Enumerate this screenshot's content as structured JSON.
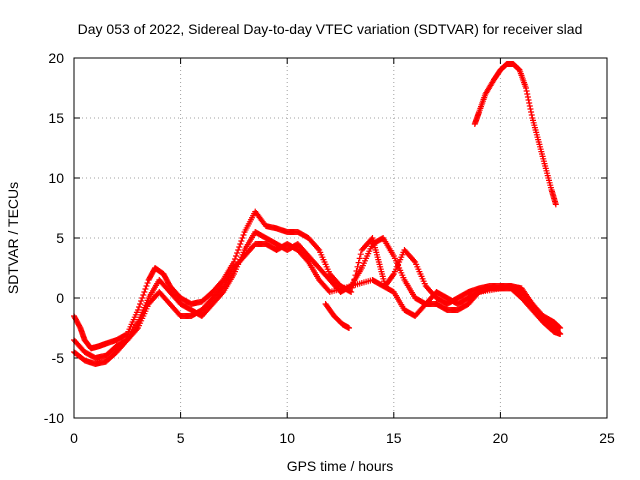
{
  "chart_data": {
    "type": "scatter",
    "title": "Day 053 of 2022, Sidereal Day-to-day VTEC variation (SDTVAR) for receiver slad",
    "xlabel": "GPS time / hours",
    "ylabel": "SDTVAR / TECUs",
    "xlim": [
      0,
      25
    ],
    "ylim": [
      -10,
      20
    ],
    "x_ticks": [
      0,
      5,
      10,
      15,
      20,
      25
    ],
    "y_ticks": [
      -10,
      -5,
      0,
      5,
      10,
      15,
      20
    ],
    "x_tick_labels": [
      "0",
      "5",
      "10",
      "15",
      "20",
      "25"
    ],
    "y_tick_labels": [
      "-10",
      "-5",
      "0",
      "5",
      "10",
      "15",
      "20"
    ],
    "grid": true,
    "marker": "+",
    "color": "#ff0000",
    "series": [
      {
        "name": "track-1",
        "points": [
          [
            0.0,
            -1.5
          ],
          [
            0.3,
            -2.5
          ],
          [
            0.5,
            -3.5
          ],
          [
            0.8,
            -4.2
          ],
          [
            1.2,
            -4.0
          ],
          [
            1.5,
            -3.8
          ],
          [
            2.0,
            -3.5
          ],
          [
            2.5,
            -3.0
          ],
          [
            3.0,
            -1.0
          ],
          [
            3.5,
            1.5
          ],
          [
            3.8,
            2.5
          ],
          [
            4.2,
            2.0
          ],
          [
            4.5,
            1.0
          ],
          [
            5.0,
            0.0
          ],
          [
            5.5,
            -0.5
          ],
          [
            6.0,
            -0.3
          ],
          [
            6.5,
            0.5
          ],
          [
            7.0,
            1.5
          ],
          [
            7.5,
            3.0
          ],
          [
            8.0,
            5.5
          ],
          [
            8.5,
            7.2
          ],
          [
            9.0,
            6.0
          ],
          [
            9.5,
            5.8
          ],
          [
            10.0,
            5.5
          ],
          [
            10.5,
            5.5
          ],
          [
            11.0,
            5.0
          ],
          [
            11.5,
            4.0
          ],
          [
            12.0,
            2.0
          ],
          [
            12.5,
            1.0
          ],
          [
            13.0,
            0.5
          ],
          [
            13.5,
            4.0
          ],
          [
            14.0,
            5.0
          ],
          [
            14.3,
            3.0
          ],
          [
            14.6,
            1.0
          ],
          [
            15.0,
            2.0
          ],
          [
            15.5,
            4.0
          ],
          [
            16.0,
            3.0
          ],
          [
            16.5,
            1.0
          ],
          [
            17.0,
            0.0
          ],
          [
            17.5,
            -0.5
          ],
          [
            18.0,
            0.0
          ],
          [
            18.5,
            0.5
          ],
          [
            19.0,
            0.8
          ],
          [
            19.5,
            1.0
          ],
          [
            20.0,
            1.0
          ],
          [
            20.5,
            1.0
          ],
          [
            21.0,
            0.8
          ],
          [
            21.5,
            -0.5
          ],
          [
            22.0,
            -1.5
          ],
          [
            22.5,
            -2.0
          ],
          [
            22.8,
            -2.5
          ]
        ]
      },
      {
        "name": "track-2",
        "points": [
          [
            0.0,
            -4.5
          ],
          [
            0.5,
            -5.2
          ],
          [
            1.0,
            -5.5
          ],
          [
            1.5,
            -5.3
          ],
          [
            2.0,
            -4.5
          ],
          [
            2.5,
            -3.5
          ],
          [
            3.0,
            -2.0
          ],
          [
            3.5,
            0.0
          ],
          [
            4.0,
            1.5
          ],
          [
            4.5,
            0.5
          ],
          [
            5.0,
            -0.5
          ],
          [
            5.5,
            -1.0
          ],
          [
            6.0,
            -1.5
          ],
          [
            6.5,
            -0.5
          ],
          [
            7.0,
            0.5
          ],
          [
            7.5,
            2.0
          ],
          [
            8.0,
            4.0
          ],
          [
            8.5,
            5.5
          ],
          [
            9.0,
            5.0
          ],
          [
            9.5,
            4.5
          ],
          [
            10.0,
            4.0
          ],
          [
            10.5,
            4.5
          ],
          [
            11.0,
            3.5
          ],
          [
            11.5,
            2.5
          ],
          [
            12.0,
            1.5
          ],
          [
            12.5,
            0.5
          ],
          [
            13.0,
            1.0
          ],
          [
            13.5,
            2.5
          ],
          [
            14.0,
            4.5
          ],
          [
            14.5,
            5.0
          ],
          [
            15.0,
            3.5
          ],
          [
            15.5,
            1.5
          ],
          [
            16.0,
            0.0
          ],
          [
            16.5,
            -0.5
          ],
          [
            17.0,
            0.5
          ],
          [
            17.5,
            0.0
          ],
          [
            18.0,
            -0.5
          ],
          [
            18.5,
            0.0
          ],
          [
            19.0,
            0.5
          ],
          [
            19.5,
            0.8
          ],
          [
            20.0,
            0.8
          ],
          [
            20.5,
            1.0
          ],
          [
            21.0,
            0.5
          ],
          [
            21.5,
            -0.5
          ],
          [
            22.0,
            -1.8
          ],
          [
            22.5,
            -2.5
          ],
          [
            22.8,
            -3.0
          ]
        ]
      },
      {
        "name": "track-3",
        "points": [
          [
            0.0,
            -3.5
          ],
          [
            0.5,
            -4.5
          ],
          [
            1.0,
            -5.0
          ],
          [
            1.5,
            -4.8
          ],
          [
            2.0,
            -4.0
          ],
          [
            2.5,
            -3.5
          ],
          [
            3.0,
            -2.5
          ],
          [
            3.5,
            -0.5
          ],
          [
            4.0,
            0.5
          ],
          [
            4.5,
            -0.5
          ],
          [
            5.0,
            -1.5
          ],
          [
            5.5,
            -1.5
          ],
          [
            6.0,
            -1.0
          ],
          [
            6.5,
            0.0
          ],
          [
            7.0,
            1.0
          ],
          [
            7.5,
            2.5
          ],
          [
            8.0,
            3.5
          ],
          [
            8.5,
            4.5
          ],
          [
            9.0,
            4.5
          ],
          [
            9.5,
            4.0
          ],
          [
            10.0,
            4.5
          ],
          [
            10.5,
            4.0
          ],
          [
            11.0,
            3.0
          ],
          [
            11.5,
            1.5
          ],
          [
            12.0,
            0.5
          ],
          [
            13.0,
            1.0
          ],
          [
            14.0,
            1.5
          ],
          [
            14.5,
            1.0
          ],
          [
            15.0,
            0.5
          ],
          [
            15.5,
            -1.0
          ],
          [
            16.0,
            -1.5
          ],
          [
            16.5,
            -0.5
          ],
          [
            17.0,
            -0.5
          ],
          [
            17.5,
            -1.0
          ],
          [
            18.0,
            -1.0
          ],
          [
            18.5,
            -0.5
          ],
          [
            19.0,
            0.5
          ],
          [
            20.0,
            0.8
          ],
          [
            20.5,
            0.8
          ],
          [
            21.0,
            0.0
          ],
          [
            21.5,
            -1.0
          ],
          [
            22.0,
            -2.0
          ],
          [
            22.5,
            -2.8
          ],
          [
            22.8,
            -3.0
          ]
        ]
      },
      {
        "name": "short-segment",
        "points": [
          [
            11.8,
            -0.5
          ],
          [
            12.2,
            -1.5
          ],
          [
            12.6,
            -2.2
          ],
          [
            12.9,
            -2.5
          ]
        ]
      },
      {
        "name": "late-arc",
        "points": [
          [
            18.8,
            14.5
          ],
          [
            19.0,
            15.5
          ],
          [
            19.3,
            17.0
          ],
          [
            19.7,
            18.2
          ],
          [
            20.0,
            19.0
          ],
          [
            20.3,
            19.5
          ],
          [
            20.6,
            19.5
          ],
          [
            20.9,
            19.0
          ],
          [
            21.2,
            17.5
          ],
          [
            21.5,
            15.0
          ],
          [
            21.8,
            13.0
          ],
          [
            22.1,
            11.0
          ],
          [
            22.4,
            9.0
          ],
          [
            22.6,
            7.8
          ]
        ]
      }
    ]
  }
}
